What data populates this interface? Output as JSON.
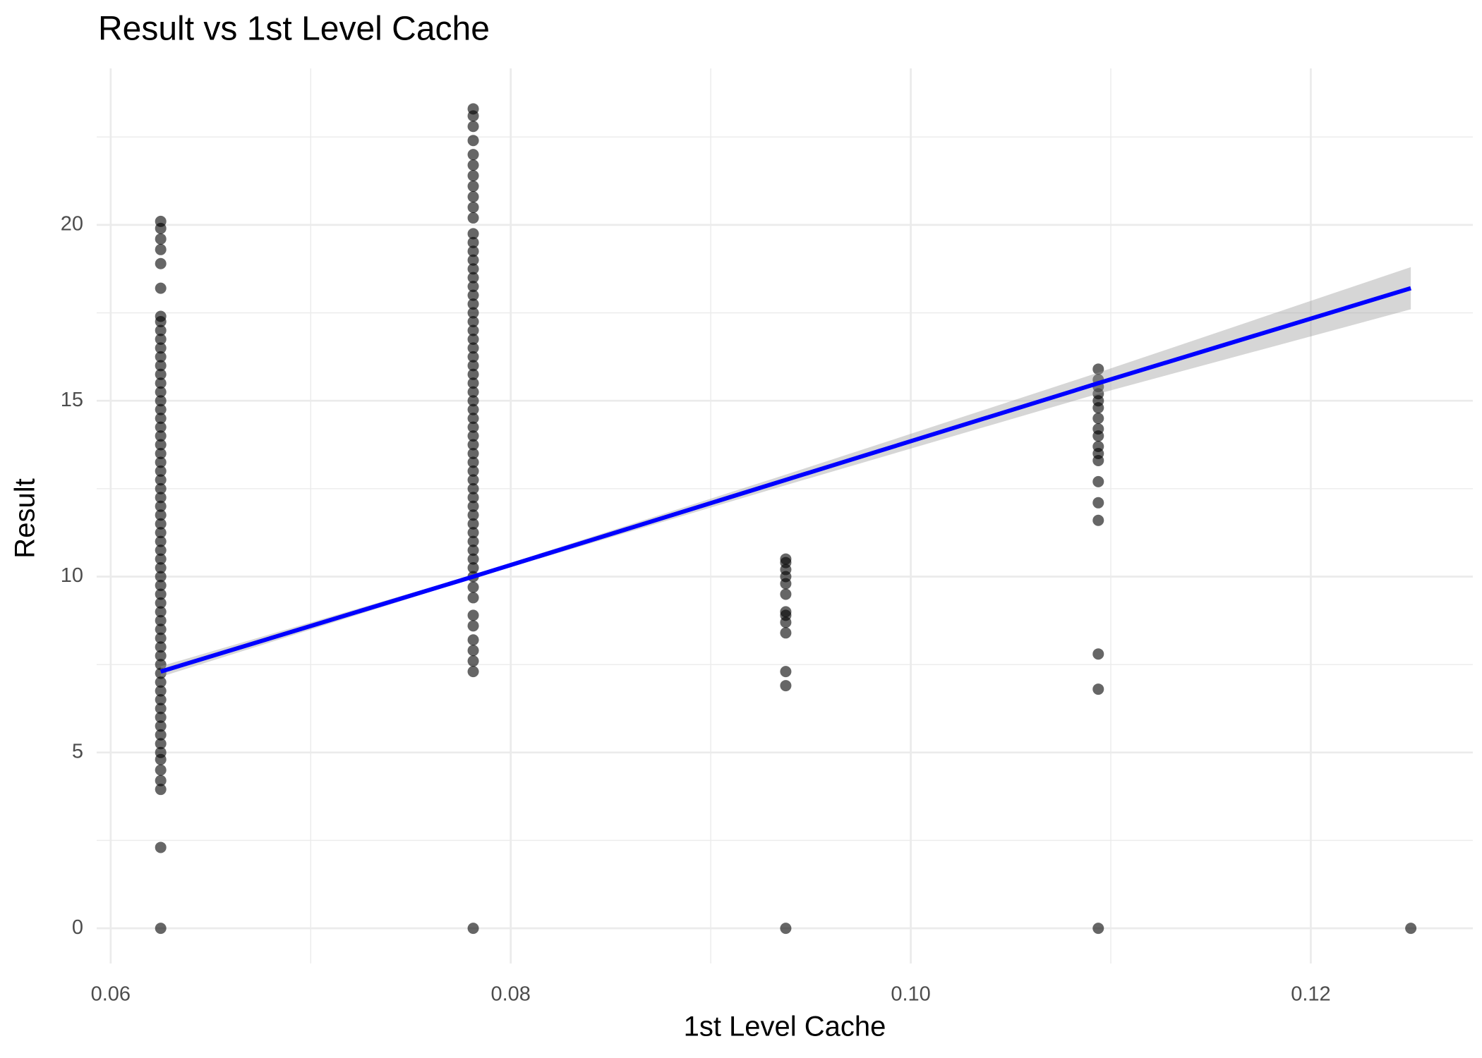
{
  "chart_data": {
    "type": "scatter",
    "title": "Result vs 1st Level Cache",
    "x_label": "1st Level Cache",
    "y_label": "Result",
    "xlim": [
      0.0593,
      0.1281
    ],
    "ylim": [
      -1.0,
      24.45
    ],
    "xticks": [
      {
        "value": 0.06,
        "label": "0.06"
      },
      {
        "value": 0.08,
        "label": "0.08"
      },
      {
        "value": 0.1,
        "label": "0.10"
      },
      {
        "value": 0.12,
        "label": "0.12"
      }
    ],
    "yticks": [
      0,
      5,
      10,
      15,
      20
    ],
    "x_minor_grid": [
      0.07,
      0.09,
      0.11
    ],
    "y_minor_grid": [
      2.5,
      7.5,
      12.5,
      17.5,
      22.5
    ],
    "grid": true,
    "point_color": "#000000",
    "points": [
      {
        "x": 0.0625,
        "values": [
          0,
          2.3,
          3.95,
          4.2,
          4.5,
          4.8,
          5.0,
          5.25,
          5.5,
          5.75,
          6,
          6.25,
          6.5,
          6.75,
          7,
          7.25,
          7.5,
          7.75,
          8,
          8.25,
          8.5,
          8.75,
          9,
          9.25,
          9.5,
          9.75,
          10,
          10.25,
          10.5,
          10.75,
          11,
          11.25,
          11.5,
          11.75,
          12,
          12.25,
          12.5,
          12.75,
          13,
          13.25,
          13.5,
          13.75,
          14,
          14.25,
          14.5,
          14.75,
          15,
          15.25,
          15.5,
          15.75,
          16,
          16.25,
          16.5,
          16.75,
          17,
          17.25,
          17.4,
          18.2,
          18.9,
          19.3,
          19.6,
          19.9,
          20.1
        ]
      },
      {
        "x": 0.078125,
        "values": [
          0,
          7.3,
          7.6,
          7.9,
          8.2,
          8.6,
          8.9,
          9.4,
          9.7,
          10,
          10.25,
          10.5,
          10.75,
          11,
          11.25,
          11.5,
          11.75,
          12,
          12.25,
          12.5,
          12.75,
          13,
          13.25,
          13.5,
          13.75,
          14,
          14.25,
          14.5,
          14.75,
          15,
          15.25,
          15.5,
          15.75,
          16,
          16.25,
          16.5,
          16.75,
          17,
          17.25,
          17.5,
          17.75,
          18,
          18.25,
          18.5,
          18.75,
          19,
          19.25,
          19.5,
          19.75,
          20.2,
          20.5,
          20.8,
          21.1,
          21.4,
          21.7,
          22.0,
          22.4,
          22.8,
          23.1,
          23.3
        ]
      },
      {
        "x": 0.09375,
        "values": [
          0,
          6.9,
          7.3,
          8.4,
          8.7,
          8.9,
          9.0,
          9.5,
          9.8,
          10.0,
          10.2,
          10.4,
          10.5
        ]
      },
      {
        "x": 0.109375,
        "values": [
          0,
          6.8,
          7.8,
          11.6,
          12.1,
          12.7,
          13.3,
          13.5,
          13.7,
          14.0,
          14.2,
          14.5,
          14.8,
          15.0,
          15.2,
          15.4,
          15.6,
          15.9
        ]
      },
      {
        "x": 0.125,
        "values": [
          0
        ]
      }
    ],
    "fit": {
      "color": "#0000ff",
      "band_color": "#999999",
      "x": [
        0.0625,
        0.078125,
        0.09375,
        0.109375,
        0.125
      ],
      "values": [
        7.3,
        10.0,
        12.75,
        15.5,
        18.2
      ],
      "ci_lower": [
        7.15,
        9.95,
        12.6,
        15.2,
        17.6
      ],
      "ci_upper": [
        7.45,
        10.05,
        12.9,
        15.8,
        18.8
      ]
    }
  }
}
